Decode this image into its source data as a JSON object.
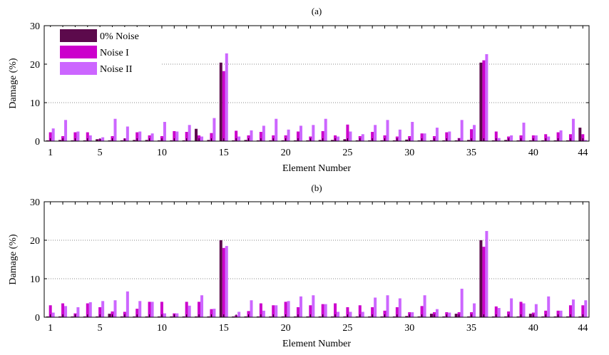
{
  "colors": {
    "zero_noise": "#5c0a4c",
    "noise_1": "#cc00cc",
    "noise_2": "#cc66ff",
    "grid": "#888888",
    "axis": "#000000"
  },
  "chart_data": [
    {
      "type": "bar",
      "title": "(a)",
      "xlabel": "Element Number",
      "ylabel": "Damage (%)",
      "ylim": [
        0,
        30
      ],
      "yticks": [
        "0",
        "10",
        "20",
        "30"
      ],
      "xticks": [
        "1",
        "5",
        "10",
        "15",
        "20",
        "25",
        "30",
        "35",
        "40",
        "44"
      ],
      "grid": "horizontal-dotted",
      "legend": "top-left",
      "categories": [
        1,
        2,
        3,
        4,
        5,
        6,
        7,
        8,
        9,
        10,
        11,
        12,
        13,
        14,
        15,
        16,
        17,
        18,
        19,
        20,
        21,
        22,
        23,
        24,
        25,
        26,
        27,
        28,
        29,
        30,
        31,
        32,
        33,
        34,
        35,
        36,
        37,
        38,
        39,
        40,
        41,
        42,
        43,
        44
      ],
      "series": [
        {
          "name": "0% Noise",
          "values": [
            0.2,
            0.3,
            0.2,
            0.2,
            0.5,
            0.2,
            0.2,
            0.3,
            0.3,
            0.2,
            0.2,
            0.2,
            3.2,
            0.3,
            20.4,
            0.2,
            0.3,
            0.2,
            0.2,
            0.2,
            0.2,
            0.2,
            0.3,
            0.3,
            0.5,
            0.2,
            0.2,
            0.2,
            0.2,
            0.4,
            0.2,
            0.2,
            0.2,
            0.2,
            0.3,
            20.4,
            0.2,
            0.3,
            0.2,
            0.2,
            0.2,
            0.2,
            0.2,
            3.5
          ]
        },
        {
          "name": "Noise I",
          "values": [
            2.3,
            1.3,
            2.3,
            2.3,
            0.6,
            1.3,
            0.7,
            2.3,
            1.5,
            1.3,
            2.6,
            2.4,
            1.5,
            2.1,
            18.2,
            2.7,
            1.5,
            2.4,
            1.5,
            1.5,
            2.5,
            1.2,
            2.6,
            1.5,
            4.3,
            1.3,
            2.4,
            1.5,
            1.2,
            1.3,
            2.0,
            1.3,
            2.3,
            0.8,
            3.1,
            21.0,
            2.5,
            1.2,
            1.5,
            1.5,
            1.8,
            2.3,
            1.8,
            1.8
          ]
        },
        {
          "name": "Noise II",
          "values": [
            3.3,
            5.5,
            2.5,
            1.5,
            1.0,
            5.8,
            3.8,
            2.5,
            2.0,
            5.0,
            2.5,
            4.2,
            1.2,
            6.0,
            22.8,
            1.2,
            2.8,
            4.0,
            5.8,
            3.0,
            4.0,
            4.2,
            5.8,
            1.2,
            2.5,
            1.8,
            4.2,
            5.5,
            3.0,
            5.0,
            2.0,
            3.5,
            2.5,
            5.5,
            4.2,
            22.6,
            0.8,
            1.5,
            4.8,
            1.5,
            1.2,
            2.8,
            5.8,
            0.3
          ]
        }
      ]
    },
    {
      "type": "bar",
      "title": "(b)",
      "xlabel": "Element Number",
      "ylabel": "Damage (%)",
      "ylim": [
        0,
        30
      ],
      "yticks": [
        "0",
        "10",
        "20",
        "30"
      ],
      "xticks": [
        "1",
        "5",
        "10",
        "15",
        "20",
        "25",
        "30",
        "35",
        "40",
        "44"
      ],
      "grid": "horizontal-dotted",
      "legend": "none",
      "categories": [
        1,
        2,
        3,
        4,
        5,
        6,
        7,
        8,
        9,
        10,
        11,
        12,
        13,
        14,
        15,
        16,
        17,
        18,
        19,
        20,
        21,
        22,
        23,
        24,
        25,
        26,
        27,
        28,
        29,
        30,
        31,
        32,
        33,
        34,
        35,
        36,
        37,
        38,
        39,
        40,
        41,
        42,
        43,
        44
      ],
      "series": [
        {
          "name": "0% Noise",
          "values": [
            0.2,
            0.2,
            0.2,
            0.2,
            0.2,
            0.9,
            0.2,
            0.2,
            0.2,
            0.2,
            0.2,
            0.2,
            0.2,
            0.2,
            20.0,
            0.2,
            0.2,
            0.2,
            0.2,
            0.2,
            0.2,
            0.2,
            0.2,
            0.2,
            0.2,
            0.2,
            0.2,
            0.2,
            0.2,
            0.3,
            0.2,
            0.9,
            0.2,
            0.9,
            0.2,
            20.0,
            0.2,
            0.2,
            0.2,
            0.9,
            0.2,
            0.2,
            0.2,
            0.2
          ]
        },
        {
          "name": "Noise I",
          "values": [
            3.1,
            3.6,
            1.0,
            3.6,
            2.6,
            1.5,
            1.4,
            2.2,
            4.0,
            4.0,
            1.0,
            4.0,
            4.0,
            2.1,
            18.0,
            0.5,
            1.6,
            3.6,
            3.1,
            4.0,
            2.6,
            3.1,
            3.4,
            3.6,
            2.6,
            3.1,
            2.6,
            1.7,
            2.6,
            1.3,
            2.9,
            1.3,
            1.3,
            1.3,
            1.3,
            18.3,
            2.8,
            1.5,
            4.0,
            1.2,
            1.7,
            1.7,
            3.1,
            3.1
          ]
        },
        {
          "name": "Noise II",
          "values": [
            1.2,
            2.9,
            2.6,
            3.9,
            4.2,
            4.4,
            6.7,
            4.2,
            4.0,
            1.0,
            1.0,
            3.0,
            5.7,
            2.2,
            18.5,
            1.4,
            4.4,
            1.7,
            3.1,
            4.2,
            5.4,
            5.7,
            3.4,
            1.4,
            1.4,
            1.4,
            5.1,
            5.7,
            4.9,
            1.3,
            5.7,
            2.1,
            1.2,
            7.4,
            3.6,
            22.4,
            2.4,
            4.9,
            3.6,
            3.4,
            5.4,
            1.7,
            4.6,
            4.4
          ]
        }
      ]
    }
  ]
}
